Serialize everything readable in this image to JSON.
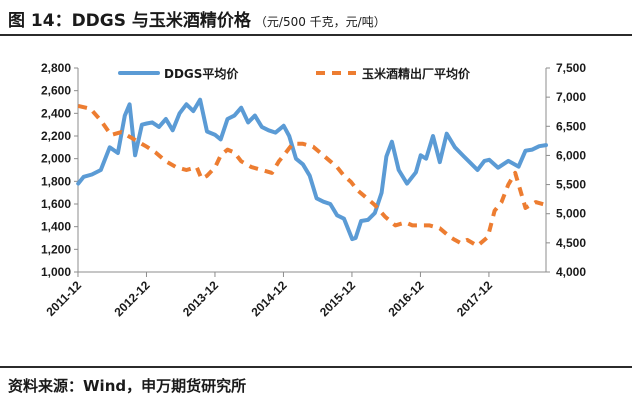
{
  "header": {
    "title": "图 14：DDGS 与玉米酒精价格",
    "subtitle": "（元/500 千克，元/吨）"
  },
  "footer": {
    "source": "资料来源：Wind，申万期货研究所"
  },
  "colors": {
    "ddgs": "#5b9bd5",
    "corn_ethanol": "#ed7d31",
    "axis": "#8c8c8c"
  },
  "chart_data": {
    "type": "line",
    "title": "",
    "grid": false,
    "legend_placement": "top",
    "x_tick_labels": [
      "2011-12",
      "2012-12",
      "2013-12",
      "2014-12",
      "2015-12",
      "2016-12",
      "2017-12"
    ],
    "x_range": [
      "2011-12",
      "2018-09"
    ],
    "y_left": {
      "range": [
        1000,
        2800
      ],
      "ticks": [
        "1,000",
        "1,200",
        "1,400",
        "1,600",
        "1,800",
        "2,000",
        "2,200",
        "2,400",
        "2,600",
        "2,800"
      ]
    },
    "y_right": {
      "range": [
        4000,
        7500
      ],
      "ticks": [
        "4,000",
        "4,500",
        "5,000",
        "5,500",
        "6,000",
        "6,500",
        "7,000",
        "7,500"
      ]
    },
    "series": [
      {
        "name": "DDGS平均价",
        "axis": "left",
        "style": "solid",
        "x": [
          2011.92,
          2012.0,
          2012.12,
          2012.25,
          2012.38,
          2012.5,
          2012.6,
          2012.67,
          2012.75,
          2012.85,
          2012.92,
          2013.0,
          2013.1,
          2013.2,
          2013.3,
          2013.4,
          2013.5,
          2013.6,
          2013.7,
          2013.8,
          2013.92,
          2014.0,
          2014.1,
          2014.2,
          2014.3,
          2014.4,
          2014.5,
          2014.6,
          2014.7,
          2014.8,
          2014.92,
          2015.0,
          2015.1,
          2015.2,
          2015.3,
          2015.4,
          2015.5,
          2015.6,
          2015.7,
          2015.8,
          2015.92,
          2015.97,
          2016.05,
          2016.15,
          2016.25,
          2016.35,
          2016.42,
          2016.5,
          2016.6,
          2016.72,
          2016.85,
          2016.92,
          2017.0,
          2017.1,
          2017.2,
          2017.3,
          2017.42,
          2017.55,
          2017.65,
          2017.75,
          2017.85,
          2017.92,
          2018.05,
          2018.2,
          2018.35,
          2018.45,
          2018.55,
          2018.65,
          2018.75
        ],
        "values": [
          1780,
          1840,
          1860,
          1900,
          2100,
          2050,
          2380,
          2480,
          2030,
          2300,
          2310,
          2320,
          2280,
          2350,
          2250,
          2400,
          2480,
          2420,
          2520,
          2240,
          2210,
          2170,
          2350,
          2380,
          2450,
          2320,
          2380,
          2280,
          2250,
          2230,
          2290,
          2200,
          2000,
          1950,
          1850,
          1650,
          1620,
          1600,
          1500,
          1470,
          1290,
          1300,
          1450,
          1460,
          1520,
          1700,
          2020,
          2150,
          1900,
          1780,
          1880,
          2030,
          2000,
          2200,
          1970,
          2220,
          2100,
          2020,
          1960,
          1900,
          1980,
          1990,
          1920,
          1980,
          1930,
          2070,
          2080,
          2110,
          2120
        ]
      },
      {
        "name": "玉米酒精出厂平均价",
        "axis": "right",
        "style": "dashed",
        "x": [
          2011.92,
          2012.1,
          2012.25,
          2012.4,
          2012.55,
          2012.7,
          2012.92,
          2013.05,
          2013.2,
          2013.35,
          2013.5,
          2013.65,
          2013.72,
          2013.8,
          2013.92,
          2014.0,
          2014.1,
          2014.2,
          2014.3,
          2014.45,
          2014.6,
          2014.75,
          2014.85,
          2014.92,
          2015.05,
          2015.2,
          2015.35,
          2015.5,
          2015.6,
          2015.7,
          2015.8,
          2015.9,
          2016.0,
          2016.1,
          2016.25,
          2016.4,
          2016.55,
          2016.7,
          2016.8,
          2016.92,
          2017.05,
          2017.2,
          2017.35,
          2017.42,
          2017.5,
          2017.6,
          2017.75,
          2017.9,
          2018.0,
          2018.1,
          2018.2,
          2018.3,
          2018.45,
          2018.6,
          2018.75
        ],
        "values": [
          6850,
          6800,
          6600,
          6350,
          6400,
          6300,
          6150,
          6050,
          5900,
          5800,
          5750,
          5800,
          5600,
          5650,
          5800,
          6000,
          6100,
          6050,
          5900,
          5800,
          5750,
          5700,
          5900,
          6000,
          6200,
          6200,
          6150,
          6000,
          5900,
          5800,
          5650,
          5550,
          5400,
          5300,
          5150,
          4950,
          4800,
          4850,
          4800,
          4800,
          4800,
          4750,
          4600,
          4550,
          4500,
          4550,
          4450,
          4600,
          5050,
          5200,
          5500,
          5700,
          5100,
          5200,
          5150
        ]
      }
    ]
  }
}
